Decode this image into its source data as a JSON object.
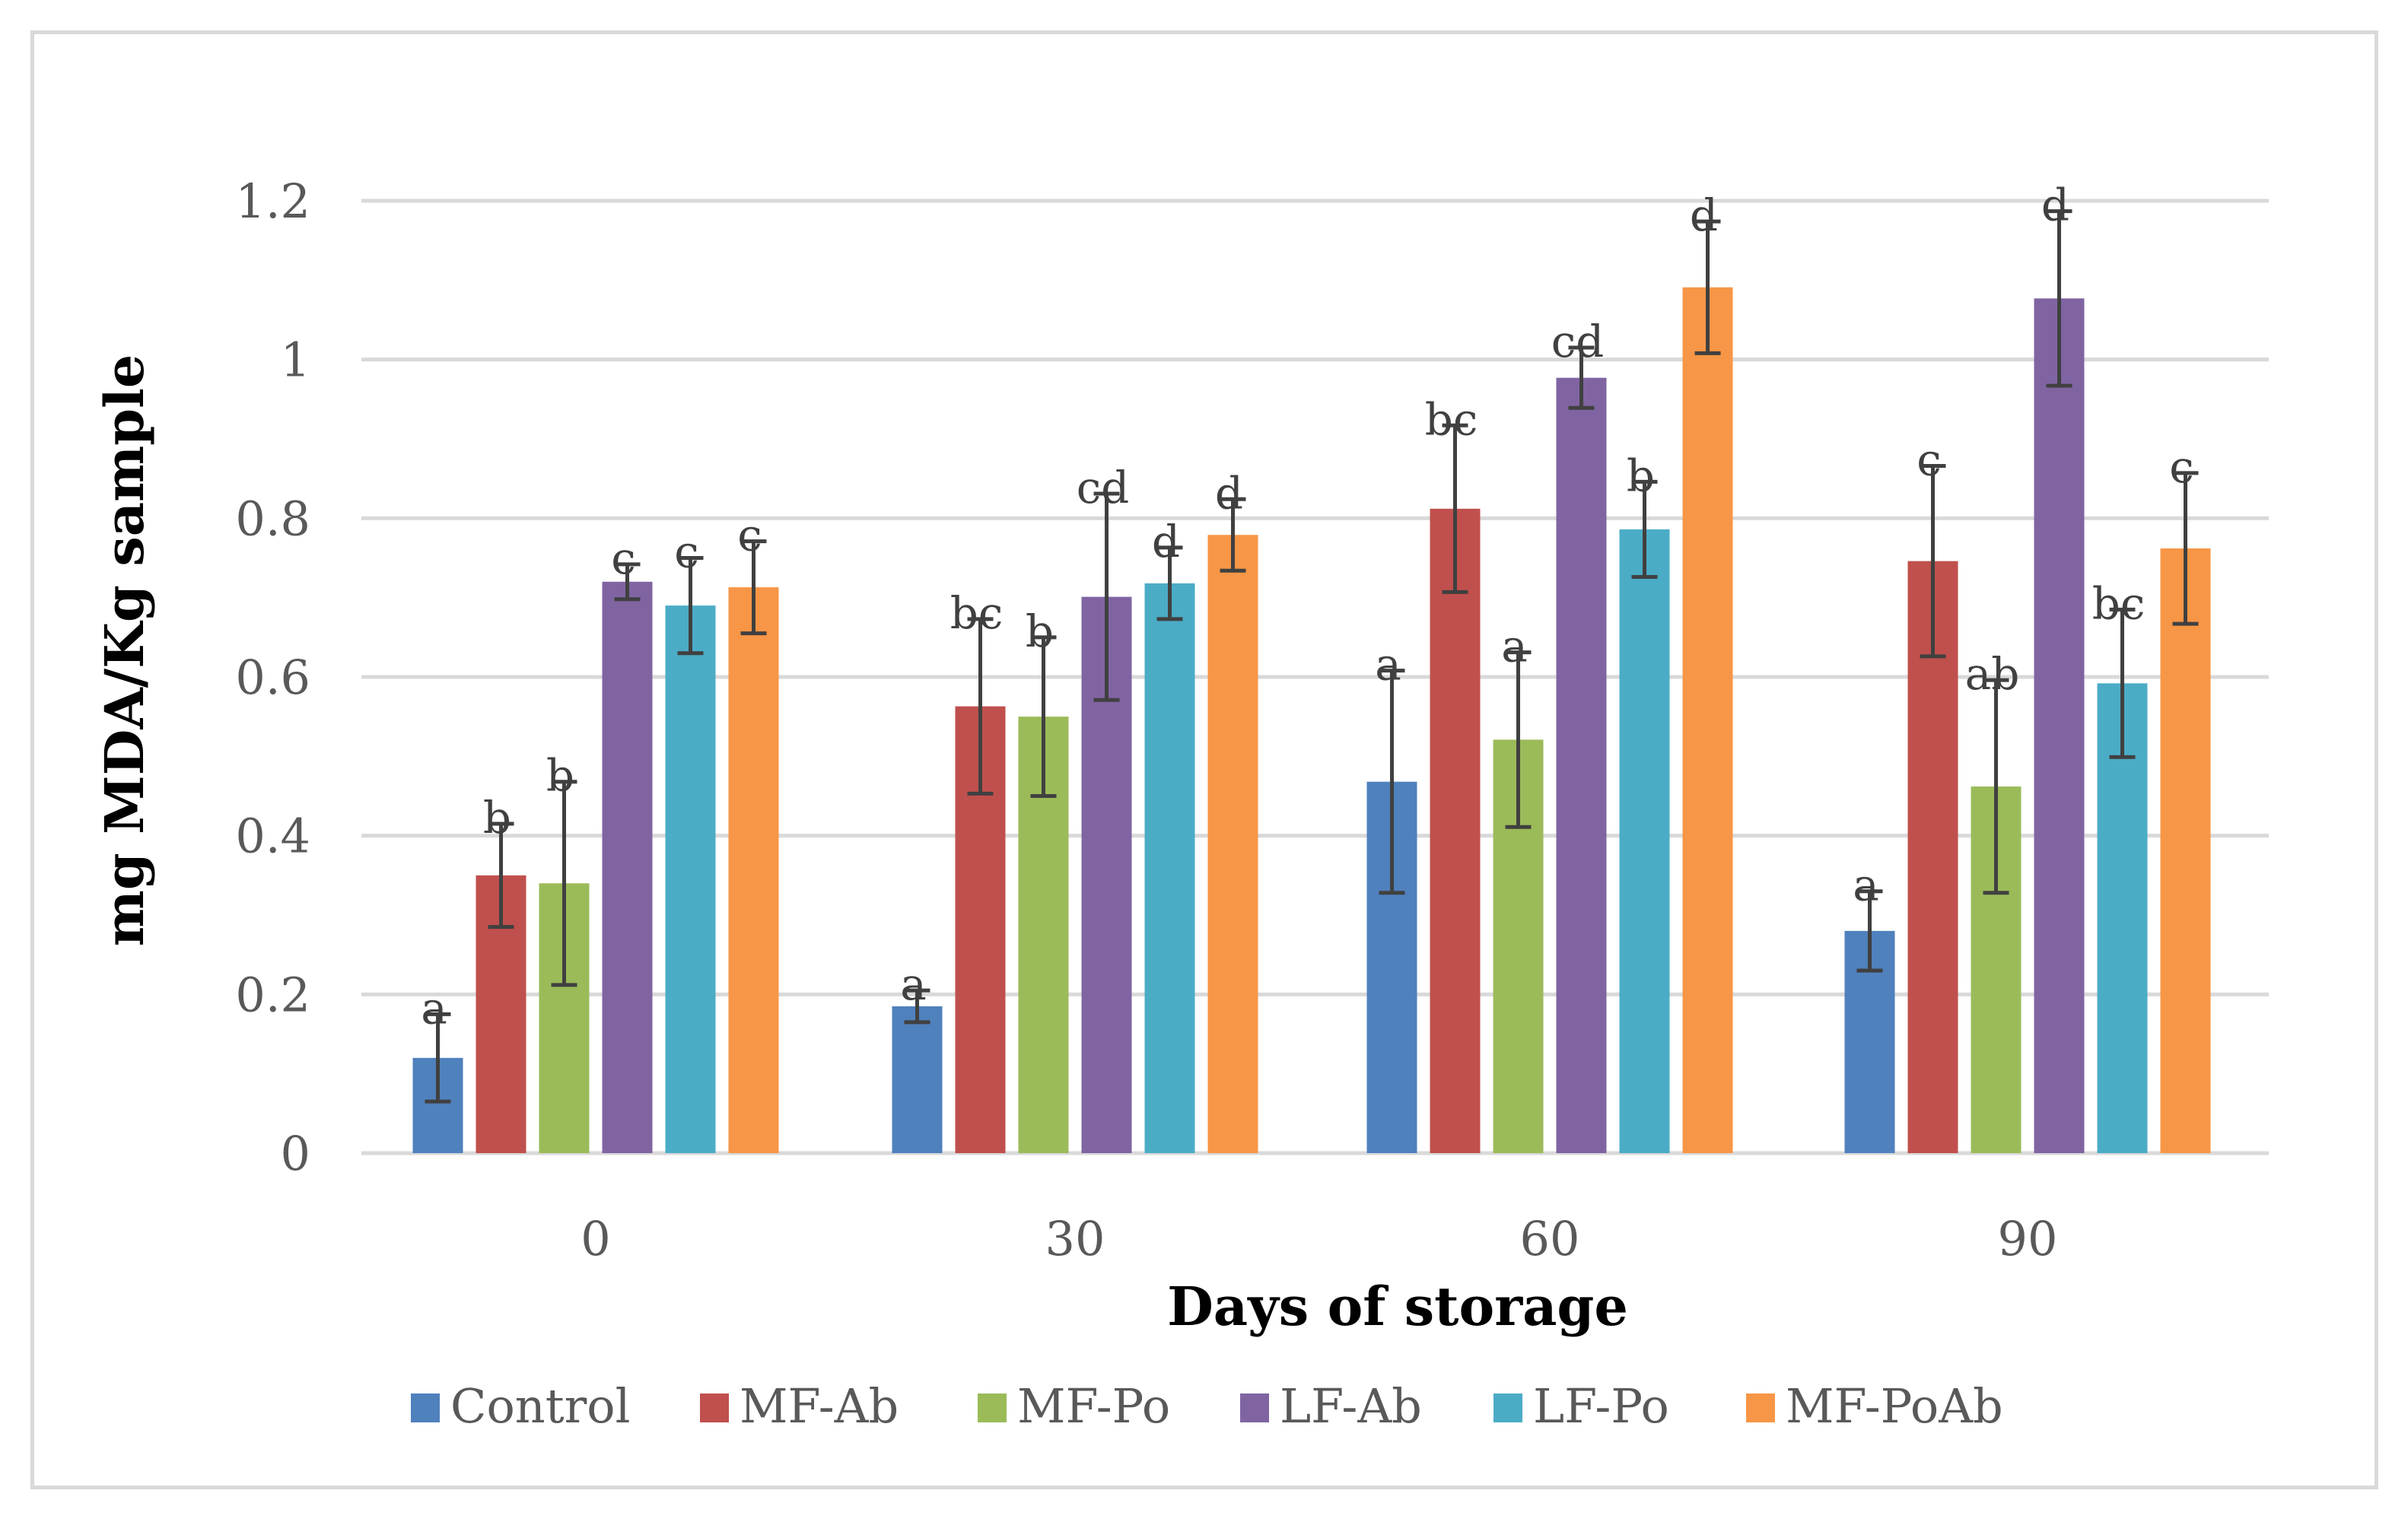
{
  "chart_data": {
    "type": "bar",
    "title": "",
    "xlabel": "Days of storage",
    "ylabel": "mg MDA/Kg sample",
    "categories": [
      "0",
      "30",
      "60",
      "90"
    ],
    "ylim": [
      0,
      1.2
    ],
    "yticks": [
      0,
      0.2,
      0.4,
      0.6,
      0.8,
      1,
      1.2
    ],
    "ytick_labels": [
      "0",
      "0.2",
      "0.4",
      "0.6",
      "0.8",
      "1",
      "1.2"
    ],
    "grid": true,
    "legend_position": "bottom",
    "series": [
      {
        "name": "Control",
        "color": "#4f81bd",
        "values": [
          0.12,
          0.185,
          0.468,
          0.28
        ],
        "errors": [
          0.055,
          0.02,
          0.14,
          0.05
        ],
        "letters": [
          "a",
          "a",
          "a",
          "a"
        ]
      },
      {
        "name": "MF-Ab",
        "color": "#c0504d",
        "values": [
          0.35,
          0.563,
          0.812,
          0.746
        ],
        "errors": [
          0.065,
          0.11,
          0.105,
          0.12
        ],
        "letters": [
          "b",
          "bc",
          "bc",
          "c"
        ]
      },
      {
        "name": "MF-Po",
        "color": "#9bbb59",
        "values": [
          0.34,
          0.55,
          0.521,
          0.462
        ],
        "errors": [
          0.128,
          0.1,
          0.11,
          0.134
        ],
        "letters": [
          "b",
          "b",
          "a",
          "ab"
        ]
      },
      {
        "name": "LF-Ab",
        "color": "#8064a2",
        "values": [
          0.72,
          0.701,
          0.977,
          1.077
        ],
        "errors": [
          0.022,
          0.13,
          0.038,
          0.11
        ],
        "letters": [
          "c",
          "cd",
          "cd",
          "d"
        ]
      },
      {
        "name": "LF-Po",
        "color": "#4bacc6",
        "values": [
          0.69,
          0.718,
          0.786,
          0.592
        ],
        "errors": [
          0.06,
          0.045,
          0.06,
          0.093
        ],
        "letters": [
          "c",
          "d",
          "b",
          "bc"
        ]
      },
      {
        "name": "MF-PoAb",
        "color": "#f79646",
        "values": [
          0.713,
          0.779,
          1.091,
          0.762
        ],
        "errors": [
          0.058,
          0.045,
          0.083,
          0.095
        ],
        "letters": [
          "c",
          "d",
          "d",
          "c"
        ]
      }
    ]
  }
}
